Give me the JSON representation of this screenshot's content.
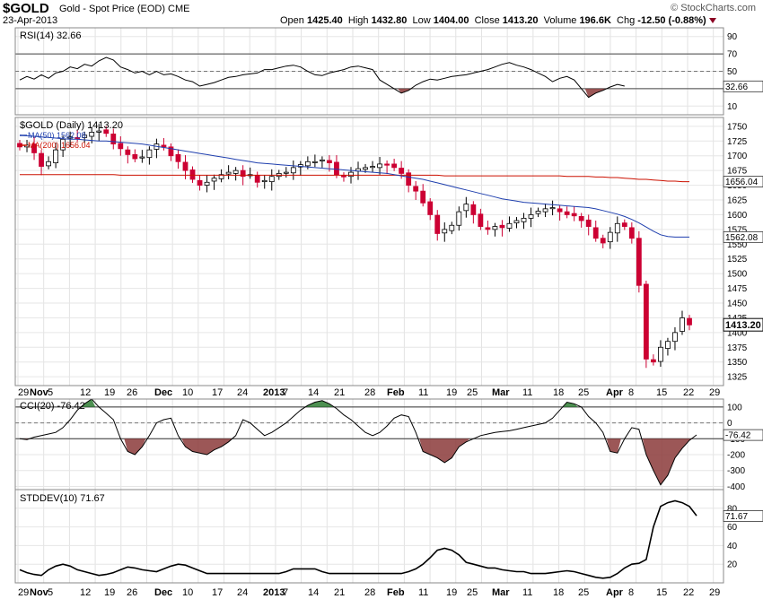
{
  "header": {
    "symbol": "$GOLD",
    "description": "Gold - Spot Price (EOD)",
    "exchange": "CME",
    "date": "23-Apr-2013",
    "brand": "© StockCharts.com",
    "quote": {
      "open_label": "Open",
      "open": "1425.40",
      "high_label": "High",
      "high": "1432.80",
      "low_label": "Low",
      "low": "1404.00",
      "close_label": "Close",
      "close": "1413.20",
      "volume_label": "Volume",
      "volume": "196.6K",
      "chg_label": "Chg",
      "chg": "-12.50 (-0.88%)"
    }
  },
  "chart_data": [
    {
      "type": "line",
      "panel": "rsi",
      "label": "RSI(14) 32.66",
      "ylim": [
        0,
        100
      ],
      "ticks": [
        10,
        30,
        50,
        70,
        90
      ],
      "ref_lines": [
        30,
        50,
        70
      ],
      "last": "32.66",
      "series": [
        {
          "name": "RSI(14)",
          "values": [
            40,
            44,
            41,
            46,
            42,
            48,
            50,
            55,
            53,
            58,
            56,
            62,
            66,
            63,
            55,
            52,
            48,
            50,
            46,
            50,
            46,
            47,
            44,
            40,
            38,
            33,
            35,
            37,
            40,
            43,
            44,
            46,
            47,
            48,
            52,
            52,
            54,
            56,
            57,
            55,
            50,
            46,
            45,
            48,
            50,
            52,
            55,
            56,
            54,
            52,
            40,
            35,
            30,
            25,
            28,
            34,
            38,
            41,
            40,
            42,
            44,
            45,
            46,
            48,
            50,
            52,
            55,
            58,
            60,
            57,
            55,
            52,
            48,
            44,
            38,
            42,
            44,
            40,
            30,
            20,
            25,
            28,
            32,
            35,
            33
          ]
        }
      ]
    },
    {
      "type": "candlestick",
      "panel": "price",
      "label": "$GOLD (Daily) 1413.20",
      "ylim": [
        1310,
        1765
      ],
      "ticks": [
        1325,
        1350,
        1375,
        1400,
        1425,
        1450,
        1475,
        1500,
        1525,
        1550,
        1575,
        1600,
        1625,
        1650,
        1675,
        1700,
        1725,
        1750
      ],
      "last_price": "1413.20",
      "ma50_label": "MA(50) 1562.08",
      "ma200_label": "MA(200) 1656.04",
      "ma50_last": "1562.08",
      "ma200_last": "1656.04",
      "closes": [
        1715,
        1718,
        1705,
        1682,
        1690,
        1710,
        1728,
        1732,
        1730,
        1735,
        1740,
        1742,
        1738,
        1720,
        1712,
        1702,
        1695,
        1698,
        1710,
        1720,
        1715,
        1700,
        1690,
        1675,
        1660,
        1650,
        1655,
        1662,
        1668,
        1672,
        1675,
        1665,
        1668,
        1655,
        1658,
        1665,
        1670,
        1672,
        1680,
        1685,
        1690,
        1690,
        1693,
        1688,
        1668,
        1665,
        1672,
        1678,
        1680,
        1682,
        1686,
        1684,
        1680,
        1670,
        1650,
        1640,
        1620,
        1600,
        1568,
        1575,
        1582,
        1605,
        1618,
        1600,
        1580,
        1575,
        1580,
        1578,
        1585,
        1590,
        1594,
        1600,
        1606,
        1610,
        1612,
        1605,
        1600,
        1598,
        1590,
        1580,
        1560,
        1552,
        1570,
        1585,
        1580,
        1560,
        1480,
        1355,
        1350,
        1375,
        1385,
        1400,
        1425,
        1413
      ],
      "ma50": [
        1735,
        1734,
        1733,
        1732,
        1731,
        1730,
        1729,
        1728,
        1728,
        1727,
        1726,
        1725,
        1725,
        1724,
        1723,
        1722,
        1721,
        1720,
        1718,
        1716,
        1714,
        1712,
        1710,
        1708,
        1706,
        1704,
        1702,
        1700,
        1698,
        1696,
        1694,
        1692,
        1690,
        1688,
        1687,
        1686,
        1685,
        1684,
        1683,
        1682,
        1681,
        1680,
        1679,
        1678,
        1677,
        1676,
        1675,
        1674,
        1673,
        1672,
        1671,
        1670,
        1668,
        1666,
        1664,
        1662,
        1660,
        1657,
        1654,
        1651,
        1648,
        1645,
        1642,
        1639,
        1636,
        1633,
        1630,
        1627,
        1625,
        1623,
        1621,
        1620,
        1619,
        1618,
        1617,
        1616,
        1615,
        1614,
        1613,
        1612,
        1610,
        1607,
        1604,
        1601,
        1597,
        1592,
        1586,
        1579,
        1572,
        1566,
        1563,
        1562,
        1562,
        1562
      ],
      "ma200": [
        1668,
        1668,
        1668,
        1668,
        1668,
        1668,
        1668,
        1668,
        1668,
        1668,
        1668,
        1668,
        1668,
        1668,
        1667,
        1667,
        1667,
        1667,
        1667,
        1667,
        1667,
        1667,
        1667,
        1667,
        1667,
        1667,
        1667,
        1667,
        1667,
        1667,
        1667,
        1667,
        1667,
        1667,
        1667,
        1667,
        1667,
        1667,
        1667,
        1667,
        1667,
        1667,
        1667,
        1667,
        1667,
        1667,
        1667,
        1667,
        1667,
        1667,
        1667,
        1667,
        1667,
        1667,
        1667,
        1667,
        1667,
        1667,
        1667,
        1666,
        1666,
        1666,
        1666,
        1666,
        1666,
        1666,
        1666,
        1666,
        1666,
        1666,
        1666,
        1666,
        1666,
        1666,
        1666,
        1666,
        1665,
        1665,
        1665,
        1665,
        1664,
        1664,
        1663,
        1663,
        1662,
        1661,
        1660,
        1660,
        1659,
        1658,
        1657,
        1657,
        1656,
        1656
      ]
    },
    {
      "type": "line",
      "panel": "cci",
      "label": "CCI(20) -76.42",
      "ylim": [
        -420,
        150
      ],
      "ticks": [
        100,
        0,
        -100,
        -200,
        -300,
        -400
      ],
      "ref_lines": [
        100,
        0,
        -100
      ],
      "last": "-76.42",
      "series": [
        {
          "name": "CCI(20)",
          "values": [
            -100,
            -105,
            -90,
            -80,
            -70,
            -60,
            -30,
            20,
            80,
            120,
            150,
            100,
            60,
            20,
            -100,
            -180,
            -200,
            -150,
            -80,
            0,
            20,
            30,
            -80,
            -150,
            -180,
            -190,
            -200,
            -170,
            -150,
            -120,
            -80,
            20,
            0,
            -40,
            -80,
            -60,
            -30,
            0,
            40,
            80,
            110,
            130,
            140,
            120,
            90,
            50,
            20,
            -20,
            -60,
            -80,
            -60,
            -20,
            30,
            50,
            40,
            -60,
            -180,
            -200,
            -220,
            -250,
            -220,
            -150,
            -120,
            -100,
            -80,
            -70,
            -60,
            -55,
            -50,
            -40,
            -30,
            -20,
            -10,
            0,
            30,
            80,
            130,
            120,
            100,
            40,
            0,
            -60,
            -180,
            -190,
            -100,
            -30,
            -40,
            -200,
            -300,
            -390,
            -330,
            -220,
            -160,
            -110,
            -76
          ]
        }
      ]
    },
    {
      "type": "line",
      "panel": "stddev",
      "label": "STDDEV(10) 71.67",
      "ylim": [
        0,
        100
      ],
      "ticks": [
        20,
        40,
        60,
        80
      ],
      "last": "71.67",
      "series": [
        {
          "name": "STDDEV(10)",
          "values": [
            14,
            11,
            9,
            8,
            14,
            18,
            20,
            18,
            14,
            12,
            10,
            8,
            9,
            11,
            14,
            17,
            16,
            14,
            13,
            12,
            15,
            18,
            20,
            19,
            16,
            13,
            10,
            10,
            10,
            10,
            10,
            10,
            10,
            10,
            10,
            10,
            10,
            12,
            15,
            15,
            15,
            15,
            12,
            10,
            10,
            10,
            10,
            10,
            10,
            10,
            10,
            10,
            10,
            10,
            12,
            15,
            20,
            27,
            35,
            37,
            35,
            30,
            22,
            20,
            18,
            16,
            16,
            14,
            13,
            12,
            12,
            10,
            10,
            10,
            11,
            12,
            13,
            12,
            10,
            8,
            6,
            5,
            6,
            10,
            16,
            20,
            21,
            25,
            60,
            82,
            86,
            88,
            86,
            82,
            72
          ]
        }
      ]
    }
  ],
  "x_axis": {
    "labels": [
      "29",
      "Nov",
      "5",
      "12",
      "19",
      "26",
      "Dec",
      "10",
      "17",
      "24",
      "2013",
      "7",
      "14",
      "21",
      "28",
      "Feb",
      "11",
      "19",
      "25",
      "Mar",
      "11",
      "18",
      "25",
      "Apr",
      "8",
      "15",
      "22",
      "29"
    ]
  },
  "colors": {
    "up": "#ffffff",
    "down": "#cc0033",
    "ma50": "#1f3fae",
    "ma200": "#cc1100",
    "cci_pos": "#2e7d32",
    "cci_neg": "#8b3a3a"
  }
}
